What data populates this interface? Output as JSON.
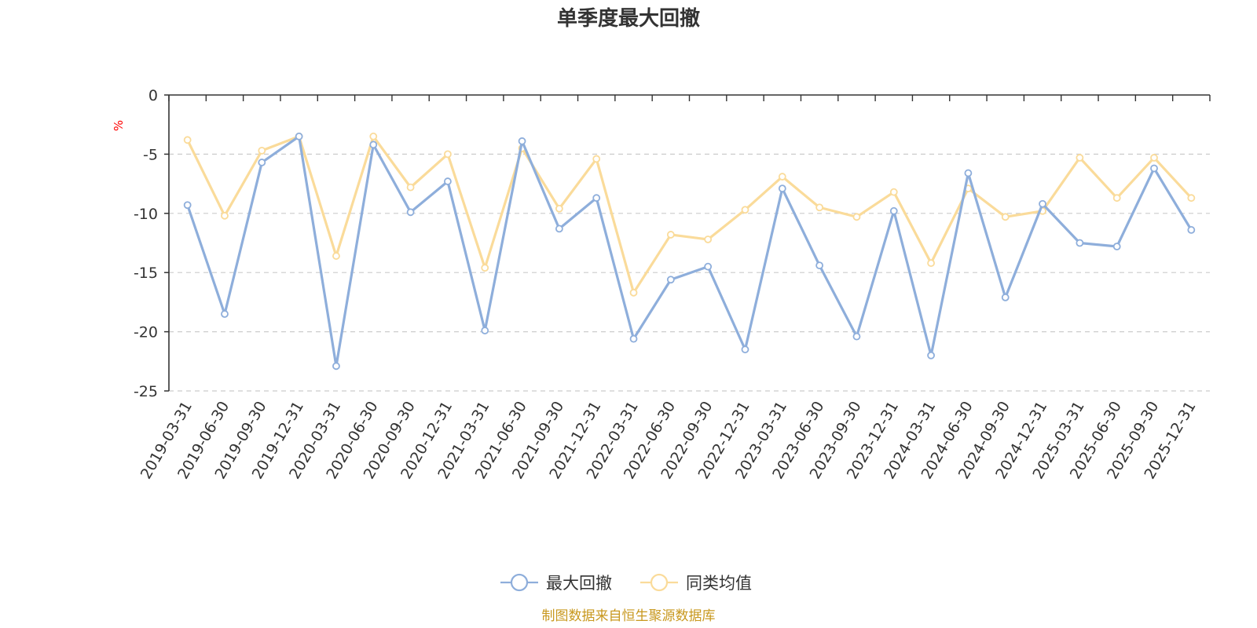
{
  "chart_data": {
    "type": "line",
    "title": "单季度最大回撤",
    "ylabel": "%",
    "ylim": [
      -25,
      0
    ],
    "yticks": [
      0,
      -5,
      -10,
      -15,
      -20,
      -25
    ],
    "grid": true,
    "legend_position": "bottom-center",
    "categories": [
      "2019-03-31",
      "2019-06-30",
      "2019-09-30",
      "2019-12-31",
      "2020-03-31",
      "2020-06-30",
      "2020-09-30",
      "2020-12-31",
      "2021-03-31",
      "2021-06-30",
      "2021-09-30",
      "2021-12-31",
      "2022-03-31",
      "2022-06-30",
      "2022-09-30",
      "2022-12-31",
      "2023-03-31",
      "2023-06-30",
      "2023-09-30",
      "2023-12-31",
      "2024-03-31",
      "2024-06-30",
      "2024-09-30",
      "2024-12-31",
      "2025-03-31",
      "2025-06-30",
      "2025-09-30",
      "2025-12-31"
    ],
    "series": [
      {
        "name": "最大回撤",
        "color": "#8eaedb",
        "values": [
          -9.3,
          -18.5,
          -5.7,
          -3.5,
          -22.9,
          -4.2,
          -9.9,
          -7.3,
          -19.9,
          -3.9,
          -11.3,
          -8.7,
          -20.6,
          -15.6,
          -14.5,
          -21.5,
          -7.9,
          -14.4,
          -20.4,
          -9.8,
          -22.0,
          -6.6,
          -17.1,
          -9.2,
          -12.5,
          -12.8,
          -6.2,
          -11.4
        ]
      },
      {
        "name": "同类均值",
        "color": "#fadb9a",
        "values": [
          -3.8,
          -10.2,
          -4.7,
          -3.5,
          -13.6,
          -3.5,
          -7.8,
          -5.0,
          -14.6,
          -4.5,
          -9.6,
          -5.4,
          -16.7,
          -11.8,
          -12.2,
          -9.7,
          -6.9,
          -9.5,
          -10.3,
          -8.2,
          -14.2,
          -7.9,
          -10.3,
          -9.8,
          -5.3,
          -8.7,
          -5.3,
          -8.7
        ]
      }
    ]
  },
  "source_note": "制图数据来自恒生聚源数据库"
}
